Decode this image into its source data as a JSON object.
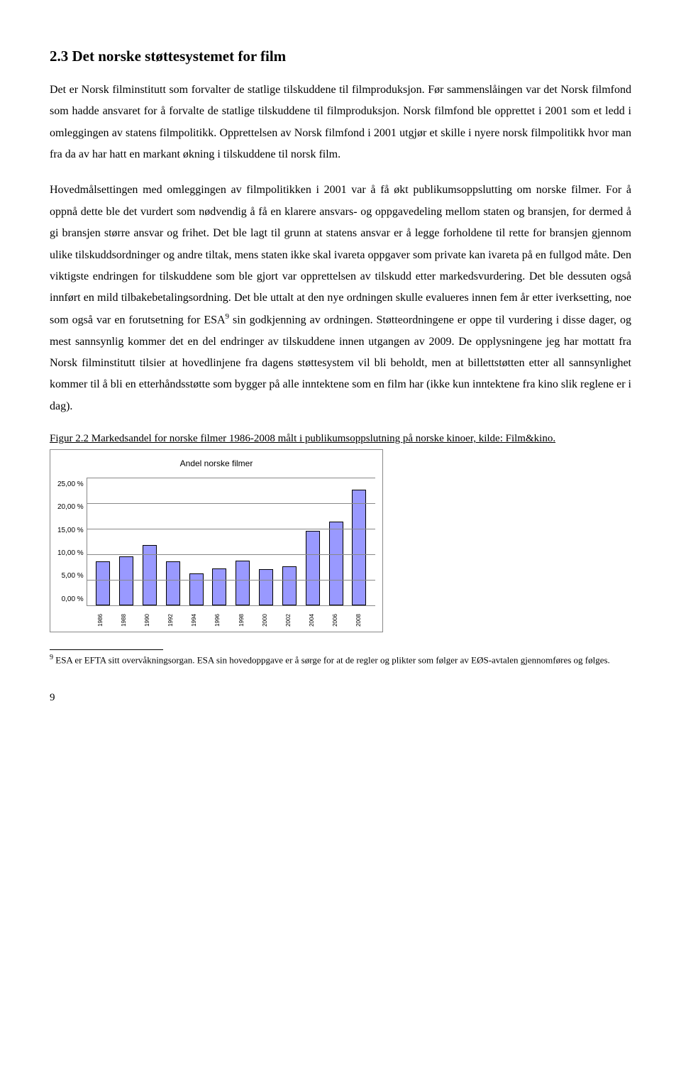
{
  "heading": "2.3 Det norske støttesystemet for film",
  "para1": "Det er Norsk filminstitutt som forvalter de statlige tilskuddene til filmproduksjon. Før sammenslåingen var det Norsk filmfond som hadde ansvaret for å forvalte de statlige tilskuddene til filmproduksjon. Norsk filmfond ble opprettet i 2001 som et ledd i omleggingen av statens filmpolitikk. Opprettelsen av Norsk filmfond i 2001 utgjør et skille i nyere norsk filmpolitikk hvor man fra da av har hatt en markant økning i tilskuddene til norsk film.",
  "para2a": "Hovedmålsettingen med omleggingen av filmpolitikken i 2001 var å få økt publikumsoppslutting om norske filmer. For å oppnå dette ble det vurdert som nødvendig å få en klarere ansvars- og oppgavedeling mellom staten og bransjen, for dermed å gi bransjen større ansvar og frihet. Det ble lagt til grunn at statens ansvar er å legge forholdene til rette for bransjen gjennom ulike tilskuddsordninger og andre tiltak, mens staten ikke skal ivareta oppgaver som private kan ivareta på en fullgod måte. Den viktigste endringen for tilskuddene som ble gjort var opprettelsen av tilskudd etter markedsvurdering. Det ble dessuten også innført en mild tilbakebetalingsordning. Det ble uttalt at den nye ordningen skulle evalueres innen fem år etter iverksetting, noe som også var en forutsetning for ESA",
  "para2b": " sin godkjenning av ordningen. Støtteordningene er oppe til vurdering i disse dager, og mest sannsynlig kommer det en del endringer av tilskuddene innen utgangen av 2009. De opplysningene jeg har mottatt fra Norsk filminstitutt tilsier at hovedlinjene fra dagens støttesystem vil bli beholdt, men at billettstøtten etter all sannsynlighet kommer til å bli en etterhåndsstøtte som bygger på alle inntektene som en film har (ikke kun inntektene fra kino slik reglene er i dag).",
  "footnote_ref": "9",
  "figure_caption": "Figur 2.2 Markedsandel for norske filmer 1986-2008 målt i publikumsoppslutning på norske kinoer, kilde: Film&kino.",
  "chart": {
    "title": "Andel norske filmer",
    "y_ticks": [
      "25,00 %",
      "20,00 %",
      "15,00 %",
      "10,00 %",
      "5,00 %",
      "0,00 %"
    ],
    "y_max": 25,
    "bar_color": "#9999ff",
    "grid_color": "#888888",
    "categories": [
      "1986",
      "1988",
      "1990",
      "1992",
      "1994",
      "1996",
      "1998",
      "2000",
      "2002",
      "2004",
      "2006",
      "2008"
    ],
    "values": [
      8.6,
      9.6,
      11.8,
      8.6,
      6.2,
      7.2,
      8.8,
      7.0,
      7.6,
      14.6,
      16.4,
      22.6
    ]
  },
  "footnote_text": " ESA er EFTA sitt overvåkningsorgan. ESA sin hovedoppgave er å sørge for at de regler og plikter som følger av EØS-avtalen gjennomføres og følges.",
  "page_number": "9"
}
